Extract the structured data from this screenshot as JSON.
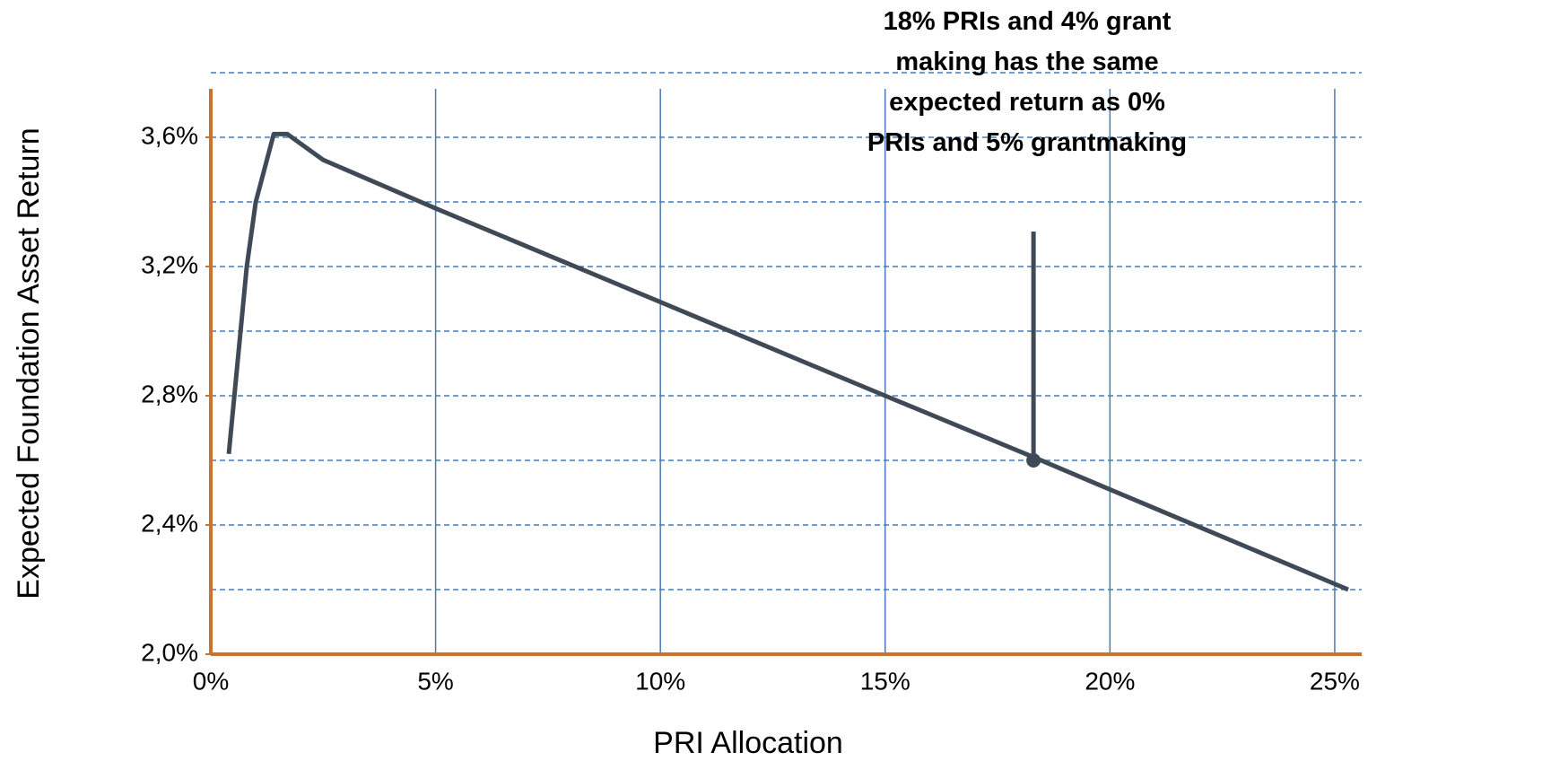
{
  "chart_data": {
    "type": "line",
    "x_label": "PRI Allocation",
    "y_label": "Expected Foundation Asset Return",
    "annotation": "18% PRIs and 4% grant making has the same expected return as 0% PRIs and 5% grantmaking",
    "annotation_point": {
      "x": 18.3,
      "y": 2.6
    },
    "x": [
      0.4,
      0.8,
      1.0,
      1.4,
      1.7,
      2.5,
      3.5,
      5,
      10,
      15,
      18.3,
      20,
      25.3
    ],
    "series": [
      {
        "color": "#3f4a56",
        "values": [
          2.62,
          3.2,
          3.4,
          3.61,
          3.61,
          3.53,
          3.47,
          3.38,
          3.09,
          2.8,
          2.61,
          2.51,
          2.2
        ]
      }
    ],
    "xlim": [
      0,
      25.6
    ],
    "ylim": [
      2.0,
      3.8
    ],
    "xticks": [
      {
        "value": 0,
        "label": "0%"
      },
      {
        "value": 5,
        "label": "5%"
      },
      {
        "value": 10,
        "label": "10%"
      },
      {
        "value": 15,
        "label": "15%"
      },
      {
        "value": 20,
        "label": "20%"
      },
      {
        "value": 25,
        "label": "25%"
      }
    ],
    "yticks": [
      {
        "value": 2.0,
        "label": "2,0%"
      },
      {
        "value": 2.4,
        "label": "2,4%"
      },
      {
        "value": 2.8,
        "label": "2,8%"
      },
      {
        "value": 3.2,
        "label": "3,2%"
      },
      {
        "value": 3.6,
        "label": "3,6%"
      }
    ],
    "y_dashed_grid": [
      2.2,
      2.4,
      2.6,
      2.8,
      3.0,
      3.2,
      3.4,
      3.6,
      3.8
    ],
    "grid": true,
    "axis_color": "#c8732f",
    "grid_color": "#4a7ab8"
  }
}
